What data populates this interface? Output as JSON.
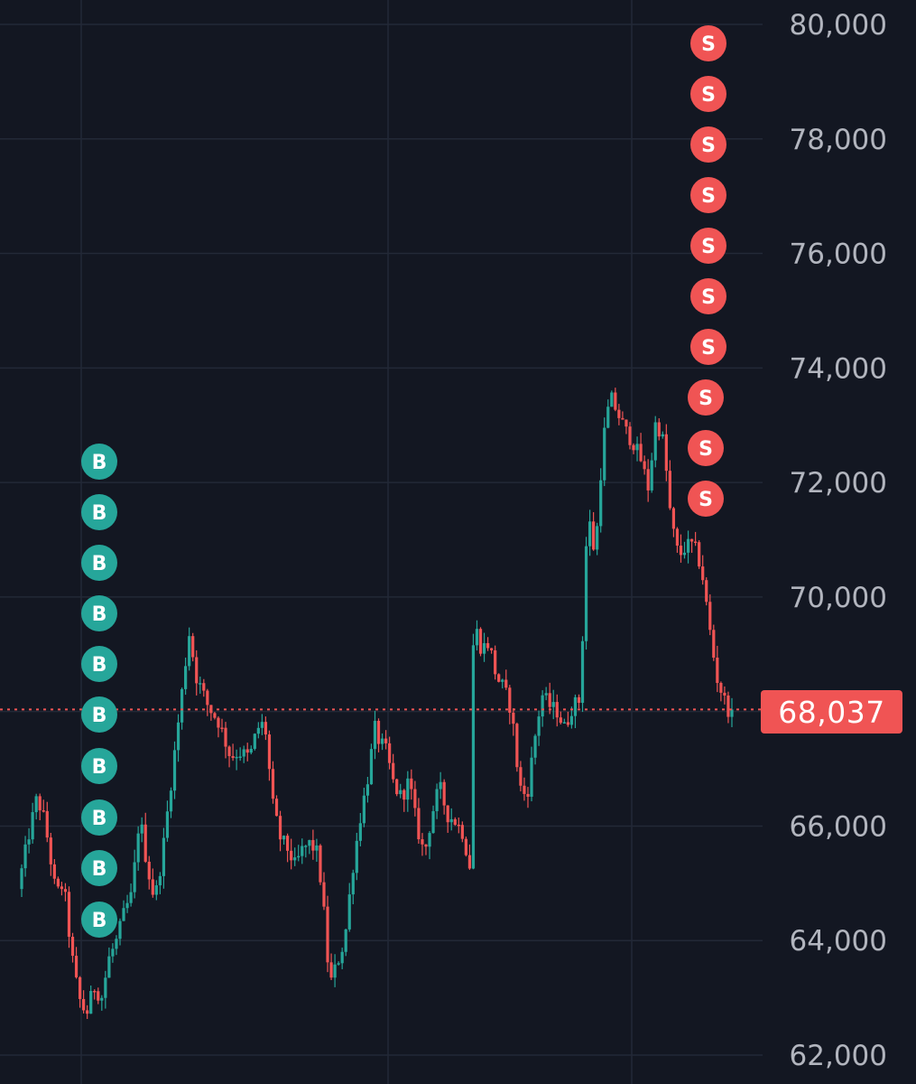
{
  "current_price": {
    "label": "68,037"
  },
  "colors": {
    "background": "#131722",
    "grid": "#232937",
    "up": "#26A69A",
    "down": "#F05454",
    "axis_text": "#B2B5BE",
    "price_tag": "#F05454",
    "buy_marker": "#26A69A",
    "sell_marker": "#F05454"
  },
  "chart_data": {
    "type": "candlestick",
    "ylim": [
      62000,
      80000
    ],
    "y_ticks": [
      {
        "value": 62000,
        "label": "62,000"
      },
      {
        "value": 64000,
        "label": "64,000"
      },
      {
        "value": 66000,
        "label": "66,000"
      },
      {
        "value": 68000,
        "label": "68,000"
      },
      {
        "value": 70000,
        "label": "70,000"
      },
      {
        "value": 72000,
        "label": "72,000"
      },
      {
        "value": 74000,
        "label": "74,000"
      },
      {
        "value": 76000,
        "label": "76,000"
      },
      {
        "value": 78000,
        "label": "78,000"
      },
      {
        "value": 80000,
        "label": "80,000"
      }
    ],
    "last_price": 68037,
    "price_path": [
      [
        0,
        64900
      ],
      [
        3,
        65900
      ],
      [
        5,
        66500
      ],
      [
        7,
        66100
      ],
      [
        10,
        64800
      ],
      [
        12,
        65000
      ],
      [
        14,
        63800
      ],
      [
        16,
        63000
      ],
      [
        18,
        62700
      ],
      [
        20,
        63200
      ],
      [
        22,
        63000
      ],
      [
        24,
        63700
      ],
      [
        26,
        64000
      ],
      [
        28,
        64500
      ],
      [
        30,
        64800
      ],
      [
        32,
        66200
      ],
      [
        34,
        65300
      ],
      [
        36,
        64700
      ],
      [
        38,
        65500
      ],
      [
        40,
        66600
      ],
      [
        42,
        67700
      ],
      [
        44,
        68800
      ],
      [
        45,
        69400
      ],
      [
        47,
        68600
      ],
      [
        50,
        68100
      ],
      [
        53,
        67800
      ],
      [
        56,
        67200
      ],
      [
        58,
        67300
      ],
      [
        61,
        67200
      ],
      [
        63,
        67700
      ],
      [
        65,
        67800
      ],
      [
        67,
        66400
      ],
      [
        69,
        65800
      ],
      [
        71,
        65600
      ],
      [
        73,
        65300
      ],
      [
        75,
        65600
      ],
      [
        77,
        65700
      ],
      [
        79,
        65500
      ],
      [
        81,
        64200
      ],
      [
        82,
        63200
      ],
      [
        84,
        63600
      ],
      [
        86,
        64000
      ],
      [
        88,
        65200
      ],
      [
        90,
        66100
      ],
      [
        92,
        66800
      ],
      [
        94,
        67700
      ],
      [
        95,
        67500
      ],
      [
        97,
        67300
      ],
      [
        99,
        66700
      ],
      [
        101,
        66500
      ],
      [
        103,
        66800
      ],
      [
        105,
        66000
      ],
      [
        107,
        65500
      ],
      [
        109,
        66200
      ],
      [
        111,
        66700
      ],
      [
        113,
        66200
      ],
      [
        115,
        66100
      ],
      [
        117,
        65900
      ],
      [
        119,
        65300
      ],
      [
        120,
        69600
      ],
      [
        122,
        69100
      ],
      [
        124,
        69200
      ],
      [
        126,
        68600
      ],
      [
        128,
        68400
      ],
      [
        130,
        68000
      ],
      [
        132,
        66700
      ],
      [
        134,
        66500
      ],
      [
        136,
        67500
      ],
      [
        138,
        68300
      ],
      [
        140,
        68100
      ],
      [
        142,
        68000
      ],
      [
        144,
        67700
      ],
      [
        146,
        68100
      ],
      [
        148,
        68200
      ],
      [
        150,
        71500
      ],
      [
        152,
        70700
      ],
      [
        154,
        72700
      ],
      [
        156,
        73500
      ],
      [
        158,
        73200
      ],
      [
        160,
        72900
      ],
      [
        162,
        72700
      ],
      [
        164,
        72400
      ],
      [
        166,
        71900
      ],
      [
        168,
        73100
      ],
      [
        170,
        72700
      ],
      [
        172,
        71300
      ],
      [
        174,
        70700
      ],
      [
        176,
        70900
      ],
      [
        178,
        70900
      ],
      [
        180,
        70500
      ],
      [
        182,
        69500
      ],
      [
        184,
        68600
      ],
      [
        186,
        68200
      ],
      [
        188,
        67900
      ]
    ],
    "markers": {
      "buy": {
        "label": "B",
        "count": 10
      },
      "sell": {
        "label": "S",
        "count": 10
      }
    }
  }
}
